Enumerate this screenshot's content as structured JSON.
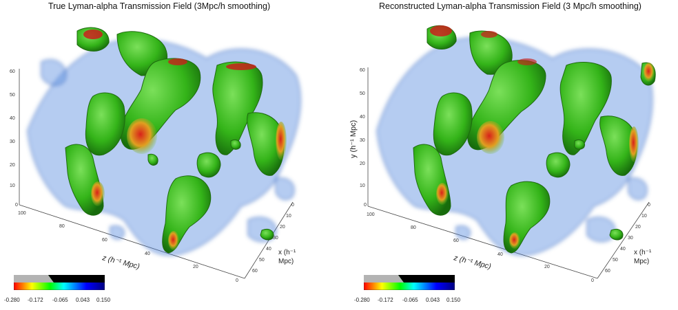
{
  "panels": [
    {
      "title": "True Lyman-alpha Transmission Field (3Mpc/h smoothing)",
      "y_axis_label": "",
      "y_ticks": [
        "60",
        "50",
        "40",
        "30",
        "20",
        "10",
        "0"
      ],
      "z_axis_label": "z (h⁻¹ Mpc)",
      "z_ticks": [
        "100",
        "80",
        "60",
        "40",
        "20",
        "0"
      ],
      "x_axis_label_line1": "x (h⁻¹",
      "x_axis_label_line2": "Mpc)",
      "x_ticks": [
        "0",
        "10",
        "20",
        "30",
        "40",
        "50",
        "60"
      ],
      "colorbar_ticks": [
        "-0.280",
        "-0.172",
        "-0.065",
        "0.043",
        "0.150"
      ]
    },
    {
      "title": "Reconstructed Lyman-alpha Transmission Field (3 Mpc/h smoothing)",
      "y_axis_label": "y (h⁻¹ Mpc)",
      "y_ticks": [
        "60",
        "50",
        "40",
        "30",
        "20",
        "10",
        "0"
      ],
      "z_axis_label": "z (h⁻¹ Mpc)",
      "z_ticks": [
        "100",
        "80",
        "60",
        "40",
        "20",
        "0"
      ],
      "x_axis_label_line1": "x (h⁻¹",
      "x_axis_label_line2": "Mpc)",
      "x_ticks": [
        "0",
        "10",
        "20",
        "30",
        "40",
        "50",
        "60"
      ],
      "colorbar_ticks": [
        "-0.280",
        "-0.172",
        "-0.065",
        "0.043",
        "0.150"
      ]
    }
  ],
  "colors": {
    "isosurface_green": "#3fbf1f",
    "isosurface_red": "#c8201a",
    "isosurface_yellow": "#e8d21a",
    "haze_blue": "#5b8fe0",
    "colorbar_stops": [
      "#ff0000",
      "#ffff00",
      "#00ff00",
      "#00ffff",
      "#0000ff",
      "#000080"
    ],
    "colorbar_mask_gray": "#b3b3b3",
    "colorbar_mask_black": "#000000"
  }
}
